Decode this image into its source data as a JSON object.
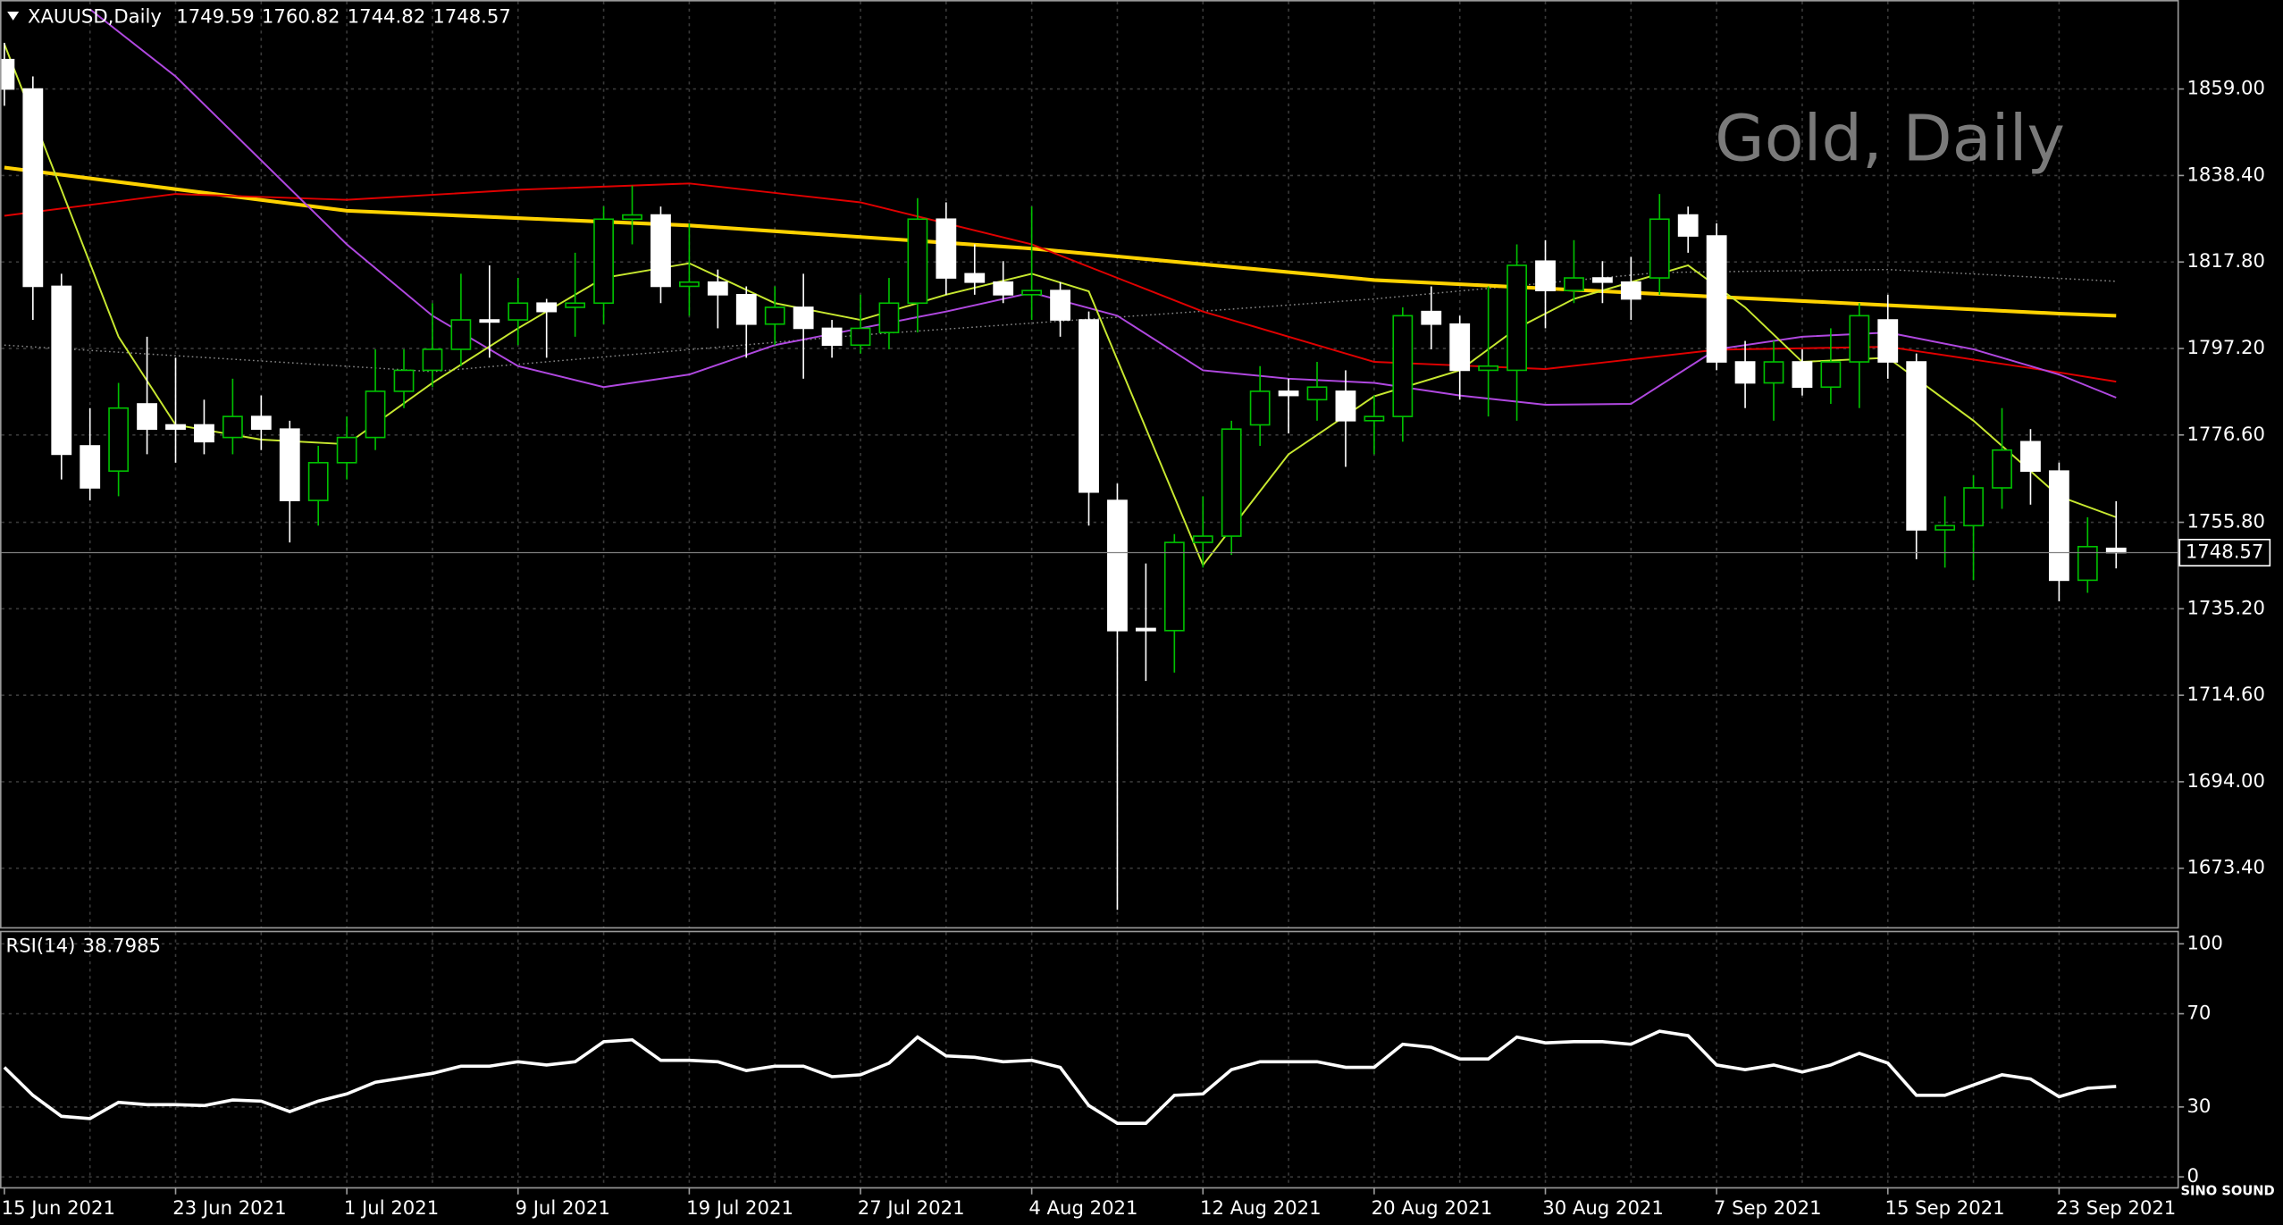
{
  "chart_data": [
    {
      "type": "candlestick",
      "title": "XAUUSD,Daily",
      "watermark": "Gold, Daily",
      "logo": "SINO SOUND",
      "up_color": "#00c000",
      "down_color": "#ffffff",
      "categories": [
        "15 Jun 2021",
        null,
        null,
        null,
        null,
        null,
        "23 Jun 2021",
        null,
        null,
        null,
        null,
        null,
        "1 Jul 2021",
        null,
        null,
        null,
        null,
        null,
        "9 Jul 2021",
        null,
        null,
        null,
        null,
        null,
        "19 Jul 2021",
        null,
        null,
        null,
        null,
        null,
        "27 Jul 2021",
        null,
        null,
        null,
        null,
        null,
        "4 Aug 2021",
        null,
        null,
        null,
        null,
        null,
        "12 Aug 2021",
        null,
        null,
        null,
        null,
        null,
        "20 Aug 2021",
        null,
        null,
        null,
        null,
        null,
        "30 Aug 2021",
        null,
        null,
        null,
        null,
        null,
        "7 Sep 2021",
        null,
        null,
        null,
        null,
        null,
        "15 Sep 2021",
        null,
        null,
        null,
        null,
        null,
        "23 Sep 2021",
        null,
        null
      ],
      "open": [
        1866,
        1859,
        1812,
        1774,
        1768,
        1784,
        1779,
        1779,
        1776,
        1781,
        1778,
        1761,
        1770,
        1776,
        1787,
        1792,
        1797,
        1804,
        1804,
        1808,
        1807,
        1808,
        1828,
        1829,
        1812,
        1813,
        1810,
        1803,
        1807,
        1802,
        1798,
        1801,
        1808,
        1828,
        1815,
        1813,
        1810,
        1811,
        1804,
        1761,
        1730.5,
        1730,
        1751,
        1752.5,
        1779,
        1787,
        1785,
        1787,
        1780,
        1781,
        1806,
        1803,
        1792,
        1792,
        1818,
        1811,
        1814,
        1813,
        1814,
        1829,
        1824,
        1794,
        1789,
        1794,
        1788,
        1794,
        1804,
        1794,
        1754,
        1755,
        1764,
        1775,
        1768,
        1742,
        1749.59
      ],
      "high": [
        1870,
        1862,
        1815,
        1783,
        1789,
        1800,
        1795,
        1785,
        1790,
        1786,
        1780,
        1774,
        1781,
        1797,
        1797,
        1808,
        1815,
        1817,
        1814,
        1809,
        1820,
        1831,
        1836,
        1831,
        1827,
        1816,
        1812,
        1812,
        1815,
        1804,
        1810,
        1814,
        1833,
        1832,
        1822,
        1818,
        1831,
        1813,
        1806,
        1765,
        1746,
        1753,
        1762,
        1780,
        1793,
        1790,
        1794,
        1792,
        1786,
        1807,
        1812,
        1805,
        1812,
        1822,
        1823,
        1823,
        1818,
        1819,
        1834,
        1831,
        1827,
        1799,
        1799,
        1797,
        1802,
        1808,
        1810,
        1796,
        1762,
        1767,
        1783,
        1778,
        1770,
        1757,
        1760.82
      ],
      "low": [
        1855,
        1804,
        1766,
        1761,
        1762,
        1772,
        1770,
        1772,
        1772,
        1773,
        1751,
        1755,
        1766,
        1773,
        1783,
        1788,
        1793,
        1795,
        1798,
        1795,
        1800,
        1803,
        1822,
        1808,
        1805,
        1802,
        1795,
        1798,
        1790,
        1795,
        1796,
        1797,
        1801,
        1810,
        1810,
        1808,
        1804,
        1800,
        1755,
        1663.5,
        1718,
        1720,
        1745,
        1748,
        1774,
        1777,
        1780,
        1769,
        1772,
        1775,
        1797,
        1785,
        1781,
        1780,
        1802,
        1808,
        1808,
        1804,
        1810,
        1820,
        1792,
        1783,
        1780,
        1786,
        1784,
        1783,
        1790,
        1747,
        1745,
        1742,
        1759,
        1760,
        1737,
        1739,
        1744.82
      ],
      "close": [
        1859,
        1812,
        1772,
        1764,
        1783,
        1778,
        1778,
        1775,
        1781,
        1778,
        1761,
        1770,
        1776,
        1787,
        1792,
        1797,
        1804,
        1803.5,
        1808,
        1806,
        1808,
        1828,
        1829,
        1812,
        1813,
        1810,
        1803,
        1807,
        1802,
        1798,
        1802,
        1808,
        1828,
        1814,
        1813,
        1810,
        1811,
        1804,
        1763,
        1730,
        1730,
        1751,
        1752.5,
        1778,
        1787,
        1786,
        1788,
        1780,
        1781,
        1805,
        1803,
        1792,
        1793,
        1817,
        1811,
        1814,
        1813,
        1809,
        1828,
        1824,
        1794,
        1789,
        1794,
        1788,
        1794,
        1805,
        1794,
        1754,
        1755,
        1764,
        1773,
        1768,
        1742,
        1750,
        1748.57
      ],
      "overlays": [
        {
          "color": "#888888",
          "style": "dotted",
          "x": [
            0,
            15,
            30,
            41,
            48,
            58,
            66,
            74
          ],
          "values": [
            1798,
            1791.7,
            1800.4,
            1805.6,
            1809,
            1815.3,
            1816,
            1813.2
          ]
        },
        {
          "color": "#ffd200",
          "style": "thick",
          "x": [
            0,
            12,
            24,
            36,
            48,
            60,
            72,
            74
          ],
          "values": [
            1840.3,
            1830,
            1826.5,
            1821,
            1813.5,
            1809.5,
            1805.5,
            1805
          ]
        },
        {
          "color": "#e00000",
          "style": "thin",
          "x": [
            0,
            6,
            12,
            18,
            24,
            30,
            36,
            42,
            48,
            54,
            60,
            66,
            72,
            74
          ],
          "values": [
            1828.8,
            1834,
            1832.6,
            1835,
            1836.5,
            1832,
            1822,
            1806,
            1794,
            1792.3,
            1796.9,
            1797.6,
            1791.5,
            1789.3
          ]
        },
        {
          "color": "#b048e0",
          "style": "thin",
          "x": [
            3,
            6,
            9,
            12,
            15,
            18,
            21,
            24,
            27,
            30,
            33,
            36,
            39,
            42,
            45,
            48,
            51,
            54,
            57,
            60,
            63,
            66,
            69,
            72,
            74
          ],
          "values": [
            1878,
            1862,
            1842,
            1822,
            1805,
            1793,
            1788,
            1791,
            1798,
            1802,
            1806,
            1810.5,
            1805,
            1792,
            1790,
            1789,
            1786,
            1783.8,
            1784,
            1797,
            1800,
            1801,
            1797,
            1791,
            1785.5
          ]
        },
        {
          "color": "#c8e830",
          "style": "thin",
          "x": [
            0,
            2,
            4,
            6,
            9,
            12,
            15,
            18,
            21,
            24,
            27,
            30,
            33,
            36,
            38,
            42,
            45,
            48,
            51,
            53,
            55,
            59,
            61,
            63,
            66,
            69,
            72,
            74
          ],
          "values": [
            1869.7,
            1835,
            1800,
            1779,
            1775.5,
            1774.4,
            1789,
            1802,
            1814,
            1817.5,
            1808,
            1804,
            1810,
            1815,
            1810.8,
            1745.6,
            1772,
            1785.8,
            1792,
            1802,
            1809,
            1817,
            1807,
            1794,
            1795,
            1780,
            1762,
            1757
          ]
        }
      ],
      "ylim": [
        1659.2,
        1880.2
      ],
      "yticks": [
        {
          "value": 1859,
          "label": "1859.00"
        },
        {
          "value": 1838.4,
          "label": "1838.40"
        },
        {
          "value": 1817.8,
          "label": "1817.80"
        },
        {
          "value": 1797.2,
          "label": "1797.20"
        },
        {
          "value": 1776.6,
          "label": "1776.60"
        },
        {
          "value": 1755.8,
          "label": "1755.80"
        },
        {
          "value": 1735.2,
          "label": "1735.20"
        },
        {
          "value": 1714.6,
          "label": "1714.60"
        },
        {
          "value": 1694,
          "label": "1694.00"
        },
        {
          "value": 1673.4,
          "label": "1673.40"
        }
      ],
      "grid": true
    },
    {
      "type": "line",
      "title": "RSI(14)",
      "color": "#ffffff",
      "values": [
        47,
        35,
        26,
        25,
        32,
        31,
        31,
        30.6,
        33,
        32.5,
        28,
        32.5,
        35.6,
        40.6,
        42.5,
        44.4,
        47.5,
        47.5,
        49.4,
        48,
        49.4,
        58,
        58.8,
        50,
        50,
        49.4,
        45.6,
        47.5,
        47.5,
        43,
        43.8,
        48.8,
        60,
        51.9,
        51.3,
        49.4,
        50,
        47,
        30.6,
        23,
        23,
        35,
        35.6,
        46,
        49.4,
        49.4,
        49.4,
        47,
        47,
        56.9,
        55.6,
        50.6,
        50.6,
        60,
        57.5,
        58,
        58,
        56.9,
        62.5,
        60.6,
        48,
        46,
        48,
        45,
        48,
        53,
        48.8,
        35,
        35,
        39.4,
        43.8,
        42,
        34.4,
        38,
        38.7985
      ],
      "ylim": [
        -4.4,
        105.6
      ],
      "yticks": [
        100,
        70,
        30,
        0
      ],
      "grid": true
    }
  ]
}
